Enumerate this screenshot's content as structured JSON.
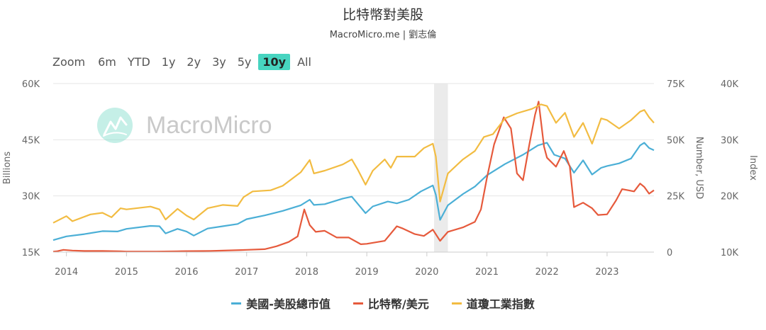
{
  "header": {
    "title": "比特幣對美股",
    "subtitle": "MacroMicro.me | 劉志倫"
  },
  "range_selector": {
    "label": "Zoom",
    "buttons": [
      "6m",
      "YTD",
      "1y",
      "2y",
      "3y",
      "5y",
      "10y",
      "All"
    ],
    "active": "10y"
  },
  "watermark": {
    "text": "MacroMicro",
    "icon": "macromicro-logo-icon"
  },
  "colors": {
    "us_market_cap": "#4bafd6",
    "bitcoin": "#e65a3c",
    "dow": "#f2bc42",
    "shade": "#ebebeb",
    "grid": "#e6e6e6",
    "axis_text": "#666666"
  },
  "chart_data": {
    "type": "line",
    "title": "比特幣對美股",
    "x_axis": {
      "ticks": [
        "2014",
        "2015",
        "2016",
        "2017",
        "2018",
        "2019",
        "2020",
        "2021",
        "2022",
        "2023"
      ],
      "range": [
        2013.78,
        2023.78
      ]
    },
    "shaded_band": [
      2020.12,
      2020.35
    ],
    "y_axes": [
      {
        "id": "left",
        "label": "Billions",
        "ticks": [
          "15K",
          "30K",
          "45K",
          "60K"
        ],
        "range": [
          15000,
          60000
        ]
      },
      {
        "id": "right1",
        "label": "Number, USD",
        "ticks": [
          "0",
          "25K",
          "50K",
          "75K"
        ],
        "range": [
          0,
          75000
        ]
      },
      {
        "id": "right2",
        "label": "Index",
        "ticks": [
          "10K",
          "20K",
          "30K",
          "40K"
        ],
        "range": [
          10000,
          40000
        ]
      }
    ],
    "series": [
      {
        "name": "美國-美股總市值",
        "axis": "left",
        "color": "#4bafd6",
        "points": [
          [
            2013.78,
            18200
          ],
          [
            2014.0,
            19200
          ],
          [
            2014.3,
            19800
          ],
          [
            2014.6,
            20600
          ],
          [
            2014.85,
            20500
          ],
          [
            2015.0,
            21200
          ],
          [
            2015.4,
            22000
          ],
          [
            2015.55,
            21900
          ],
          [
            2015.65,
            20000
          ],
          [
            2015.85,
            21200
          ],
          [
            2016.0,
            20500
          ],
          [
            2016.12,
            19400
          ],
          [
            2016.35,
            21300
          ],
          [
            2016.6,
            21900
          ],
          [
            2016.85,
            22500
          ],
          [
            2017.0,
            23800
          ],
          [
            2017.3,
            24800
          ],
          [
            2017.6,
            26000
          ],
          [
            2017.9,
            27500
          ],
          [
            2018.05,
            29000
          ],
          [
            2018.12,
            27600
          ],
          [
            2018.3,
            27800
          ],
          [
            2018.6,
            29300
          ],
          [
            2018.75,
            29800
          ],
          [
            2018.85,
            27900
          ],
          [
            2018.98,
            25400
          ],
          [
            2019.1,
            27200
          ],
          [
            2019.35,
            28500
          ],
          [
            2019.5,
            28000
          ],
          [
            2019.7,
            29000
          ],
          [
            2019.9,
            31200
          ],
          [
            2020.1,
            32800
          ],
          [
            2020.15,
            30300
          ],
          [
            2020.22,
            23600
          ],
          [
            2020.35,
            27500
          ],
          [
            2020.6,
            30500
          ],
          [
            2020.8,
            32500
          ],
          [
            2021.0,
            35500
          ],
          [
            2021.3,
            38500
          ],
          [
            2021.6,
            41000
          ],
          [
            2021.85,
            43500
          ],
          [
            2022.0,
            44200
          ],
          [
            2022.12,
            41000
          ],
          [
            2022.3,
            40000
          ],
          [
            2022.45,
            36200
          ],
          [
            2022.6,
            39500
          ],
          [
            2022.75,
            35700
          ],
          [
            2022.9,
            37500
          ],
          [
            2023.0,
            38000
          ],
          [
            2023.2,
            38700
          ],
          [
            2023.4,
            40000
          ],
          [
            2023.55,
            43500
          ],
          [
            2023.62,
            44200
          ],
          [
            2023.7,
            42800
          ],
          [
            2023.78,
            42200
          ]
        ]
      },
      {
        "name": "比特幣/美元",
        "axis": "right1",
        "color": "#e65a3c",
        "points": [
          [
            2013.78,
            200
          ],
          [
            2013.85,
            400
          ],
          [
            2013.95,
            1000
          ],
          [
            2014.1,
            700
          ],
          [
            2014.3,
            500
          ],
          [
            2014.6,
            550
          ],
          [
            2014.9,
            370
          ],
          [
            2015.0,
            250
          ],
          [
            2015.5,
            260
          ],
          [
            2015.85,
            380
          ],
          [
            2016.0,
            430
          ],
          [
            2016.4,
            550
          ],
          [
            2016.6,
            650
          ],
          [
            2016.9,
            900
          ],
          [
            2017.0,
            1000
          ],
          [
            2017.3,
            1300
          ],
          [
            2017.5,
            2600
          ],
          [
            2017.7,
            4500
          ],
          [
            2017.85,
            7000
          ],
          [
            2017.96,
            19000
          ],
          [
            2018.05,
            12000
          ],
          [
            2018.15,
            9000
          ],
          [
            2018.3,
            9500
          ],
          [
            2018.5,
            6500
          ],
          [
            2018.7,
            6500
          ],
          [
            2018.9,
            3500
          ],
          [
            2019.0,
            3700
          ],
          [
            2019.3,
            5000
          ],
          [
            2019.5,
            11500
          ],
          [
            2019.6,
            10500
          ],
          [
            2019.8,
            8000
          ],
          [
            2019.95,
            7200
          ],
          [
            2020.1,
            10000
          ],
          [
            2020.22,
            5000
          ],
          [
            2020.35,
            9000
          ],
          [
            2020.6,
            11000
          ],
          [
            2020.8,
            13500
          ],
          [
            2020.9,
            19000
          ],
          [
            2021.0,
            33000
          ],
          [
            2021.12,
            48000
          ],
          [
            2021.28,
            60000
          ],
          [
            2021.4,
            55000
          ],
          [
            2021.5,
            35000
          ],
          [
            2021.6,
            32000
          ],
          [
            2021.7,
            47000
          ],
          [
            2021.8,
            61000
          ],
          [
            2021.86,
            67000
          ],
          [
            2021.95,
            47000
          ],
          [
            2022.0,
            42000
          ],
          [
            2022.15,
            38000
          ],
          [
            2022.28,
            45000
          ],
          [
            2022.38,
            38000
          ],
          [
            2022.45,
            20000
          ],
          [
            2022.6,
            22000
          ],
          [
            2022.75,
            19500
          ],
          [
            2022.85,
            16500
          ],
          [
            2023.0,
            16800
          ],
          [
            2023.15,
            23000
          ],
          [
            2023.25,
            28000
          ],
          [
            2023.45,
            27000
          ],
          [
            2023.55,
            30500
          ],
          [
            2023.62,
            29000
          ],
          [
            2023.7,
            26000
          ],
          [
            2023.78,
            27500
          ]
        ]
      },
      {
        "name": "道瓊工業指數",
        "axis": "right2",
        "color": "#f2bc42",
        "points": [
          [
            2013.78,
            15200
          ],
          [
            2014.0,
            16400
          ],
          [
            2014.1,
            15500
          ],
          [
            2014.4,
            16700
          ],
          [
            2014.6,
            17000
          ],
          [
            2014.75,
            16200
          ],
          [
            2014.9,
            17800
          ],
          [
            2015.0,
            17600
          ],
          [
            2015.4,
            18100
          ],
          [
            2015.55,
            17600
          ],
          [
            2015.65,
            15800
          ],
          [
            2015.85,
            17700
          ],
          [
            2016.0,
            16500
          ],
          [
            2016.12,
            15800
          ],
          [
            2016.35,
            17800
          ],
          [
            2016.6,
            18400
          ],
          [
            2016.85,
            18200
          ],
          [
            2016.95,
            19800
          ],
          [
            2017.1,
            20800
          ],
          [
            2017.4,
            21000
          ],
          [
            2017.6,
            21800
          ],
          [
            2017.9,
            24200
          ],
          [
            2018.05,
            26400
          ],
          [
            2018.12,
            24000
          ],
          [
            2018.3,
            24500
          ],
          [
            2018.6,
            25600
          ],
          [
            2018.75,
            26500
          ],
          [
            2018.85,
            24700
          ],
          [
            2018.98,
            22000
          ],
          [
            2019.1,
            24500
          ],
          [
            2019.3,
            26500
          ],
          [
            2019.4,
            25000
          ],
          [
            2019.5,
            27000
          ],
          [
            2019.8,
            27000
          ],
          [
            2019.95,
            28500
          ],
          [
            2020.1,
            29300
          ],
          [
            2020.15,
            27000
          ],
          [
            2020.22,
            19000
          ],
          [
            2020.35,
            24000
          ],
          [
            2020.6,
            26500
          ],
          [
            2020.8,
            28000
          ],
          [
            2020.95,
            30500
          ],
          [
            2021.1,
            31000
          ],
          [
            2021.3,
            33800
          ],
          [
            2021.5,
            34700
          ],
          [
            2021.75,
            35500
          ],
          [
            2021.9,
            36300
          ],
          [
            2022.0,
            36000
          ],
          [
            2022.15,
            33000
          ],
          [
            2022.3,
            34800
          ],
          [
            2022.45,
            30500
          ],
          [
            2022.6,
            33000
          ],
          [
            2022.75,
            29300
          ],
          [
            2022.9,
            33800
          ],
          [
            2023.0,
            33500
          ],
          [
            2023.2,
            32000
          ],
          [
            2023.4,
            33500
          ],
          [
            2023.55,
            35000
          ],
          [
            2023.62,
            35300
          ],
          [
            2023.7,
            34000
          ],
          [
            2023.78,
            33000
          ]
        ]
      }
    ],
    "legend_position": "bottom",
    "grid": true
  }
}
